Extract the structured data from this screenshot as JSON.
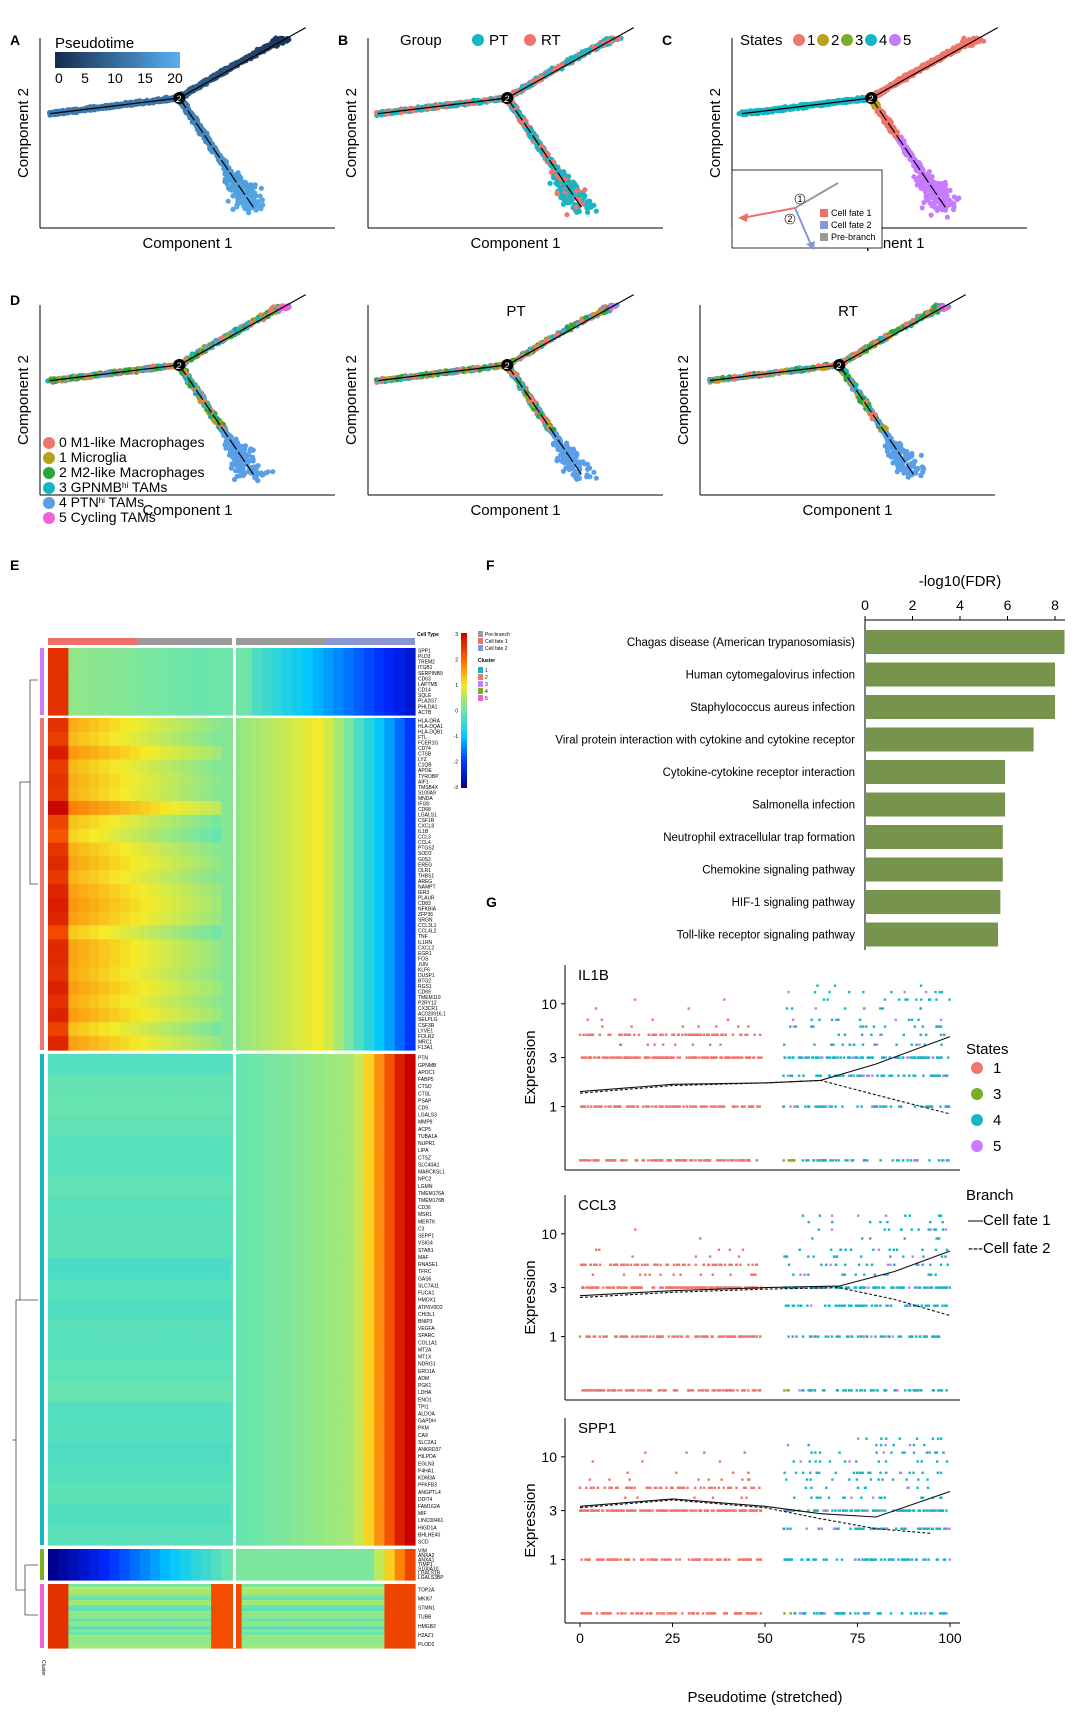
{
  "panel_labels": [
    "A",
    "B",
    "C",
    "D",
    "E",
    "F",
    "G"
  ],
  "colors": {
    "fate1": "#ec7168",
    "fate2": "#8a96d4",
    "prebranch": "#9a9a9a",
    "state1": "#ef766c",
    "state2": "#b8a21a",
    "state3": "#7cae25",
    "state4": "#16b5c3",
    "state5": "#c77cff",
    "pt": "#16b5c3",
    "rt": "#ef766c",
    "c0": "#ef766c",
    "c1": "#b8a21a",
    "c2": "#27a83c",
    "c3": "#16b5c3",
    "c4": "#5a9ee8",
    "c5": "#f260dc",
    "bar": "#76944c"
  },
  "trajectory": {
    "xlabel": "Component 1",
    "ylabel": "Component 2",
    "branch_label": "2",
    "A": {
      "legend_title": "Pseudotime",
      "colorbar_ticks": [
        "0",
        "5",
        "10",
        "15",
        "20"
      ]
    },
    "B": {
      "legend_title": "Group",
      "groups": [
        "PT",
        "RT"
      ]
    },
    "C": {
      "legend_title": "States",
      "states": [
        "1",
        "2",
        "3",
        "4",
        "5"
      ],
      "inset": {
        "labels": [
          "Cell fate 1",
          "Cell fate 2",
          "Pre-branch"
        ],
        "markers": [
          "1",
          "2"
        ]
      }
    },
    "D": {
      "titles": [
        "",
        "PT",
        "RT"
      ],
      "clusters": [
        "0 M1-like Macrophages",
        "1 Microglia",
        "2 M2-like Macrophages",
        "3 GPNMBhi TAMs",
        "4 PTNhi TAMs",
        "5 Cycling TAMs"
      ],
      "cluster_superscript_names": [
        {
          "base": "3 GPNMB",
          "sup": "hi",
          "rest": " TAMs"
        },
        {
          "base": "4 PTN",
          "sup": "hi",
          "rest": " TAMs"
        }
      ]
    }
  },
  "heatmap": {
    "cell_type_title": "Cell Type",
    "cell_types": [
      "Pre-branch",
      "Cell fate 1",
      "Cell fate 2"
    ],
    "cluster_title": "Cluster",
    "clusters": [
      "1",
      "2",
      "3",
      "4",
      "5"
    ],
    "colorbar_ticks": [
      "3",
      "2",
      "1",
      "0",
      "-1",
      "-2",
      "-3"
    ],
    "side_label": "Cluster",
    "genes_block1": [
      "SPP1",
      "PLD3",
      "TREM2",
      "ITGB1",
      "SERPINB9",
      "CD63",
      "LAPTM5",
      "CD14",
      "SQLE",
      "PLA2G7",
      "PHLDA1",
      "ACTB"
    ],
    "genes_block2": [
      "HLA-DRA",
      "HLA-DQA1",
      "HLA-DQB1",
      "FTL",
      "FCER1G",
      "CD74",
      "CTSB",
      "LYZ",
      "C1QB",
      "APOE",
      "TYROBP",
      "AIF1",
      "TMSB4X",
      "S100A9",
      "MNDA",
      "IFI30",
      "CD68",
      "LGALS1",
      "CSF1R",
      "CXCL8",
      "IL1B",
      "CCL3",
      "CCL4",
      "PTGS2",
      "SOD2",
      "G0S2",
      "EREG",
      "OLR1",
      "THBS1",
      "AREG",
      "NAMPT",
      "IER3",
      "PLAUR",
      "CD83",
      "NFKBIA",
      "ZFP36",
      "SRGN",
      "CCL3L1",
      "CCL4L2",
      "TNF",
      "IL1RN",
      "CXCL2",
      "EGR1",
      "FOS",
      "JUN",
      "KLF6",
      "DUSP1",
      "BTG2",
      "RGS1",
      "CD69",
      "TMEM119",
      "P2RY12",
      "CX3CR1",
      "AC020916.1",
      "SELPLG",
      "CSF3R",
      "LYVE1",
      "FOLR2",
      "MRC1",
      "F13A1"
    ],
    "genes_block3": [
      "PTN",
      "GPNMB",
      "APOC1",
      "FABP5",
      "CTSD",
      "CTSL",
      "PSAP",
      "CD9",
      "LGALS3",
      "MMP9",
      "ACP5",
      "TUBA1A",
      "NUPR1",
      "LIPA",
      "CTSZ",
      "SLC40A1",
      "MARCKSL1",
      "NPC2",
      "LGMN",
      "TMEM176A",
      "TMEM176B",
      "CD36",
      "MSR1",
      "MERTK",
      "C3",
      "SEPP1",
      "VSIG4",
      "STAB1",
      "MAF",
      "RNASE1",
      "TFRC",
      "GAS6",
      "SLC7A11",
      "FUCA1",
      "HMOX1",
      "ATP6V0D2",
      "CHI3L1",
      "BNIP3",
      "VEGFA",
      "SPARC",
      "COL1A1",
      "MT2A",
      "MT1X",
      "NDRG1",
      "ERO1A",
      "ADM",
      "PGK1",
      "LDHA",
      "ENO1",
      "TPI1",
      "ALDOA",
      "GAPDH",
      "PKM",
      "CA9",
      "SLC2A1",
      "ANKRD37",
      "HILPDA",
      "EGLN3",
      "P4HA1",
      "KDM3A",
      "PFKFB3",
      "ANGPTL4",
      "DDIT4",
      "FAM162A",
      "MIF",
      "LINC00461",
      "HIGD1A",
      "BHLHE40",
      "SCD"
    ],
    "genes_block4": [
      "VIM",
      "ANXA2",
      "ANXA1",
      "TIMP1",
      "S100A10",
      "LGALS1B",
      "LGALS3BP"
    ],
    "genes_block5": [
      "TOP2A",
      "MKI67",
      "STMN1",
      "TUBB",
      "HMGB2",
      "H2AZ1",
      "PLOD2"
    ]
  },
  "chart_data": [
    {
      "panel": "F",
      "type": "bar",
      "orientation": "horizontal",
      "title": "-log10(FDR)",
      "categories": [
        "Chagas disease (American trypanosomiasis)",
        "Human cytomegalovirus infection",
        "Staphylococcus aureus infection",
        "Viral protein interaction with cytokine and cytokine receptor",
        "Cytokine-cytokine receptor interaction",
        "Salmonella infection",
        "Neutrophil extracellular trap formation",
        "Chemokine signaling pathway",
        "HIF-1 signaling pathway",
        "Toll-like receptor signaling pathway"
      ],
      "values": [
        8.4,
        8.0,
        8.0,
        7.1,
        5.9,
        5.9,
        5.8,
        5.8,
        5.7,
        5.6
      ],
      "xticks": [
        0,
        2,
        4,
        6,
        8
      ],
      "xlim": [
        0,
        8.5
      ]
    },
    {
      "panel": "G",
      "type": "scatter",
      "xlabel": "Pseudotime (stretched)",
      "ylabel": "Expression",
      "xticks": [
        0,
        25,
        50,
        75,
        100
      ],
      "yticks": [
        1,
        3,
        10
      ],
      "ylog": true,
      "genes": [
        "IL1B",
        "CCL3",
        "SPP1"
      ],
      "states_legend_title": "States",
      "states": [
        "1",
        "3",
        "4",
        "5"
      ],
      "branch_legend_title": "Branch",
      "branches": [
        "—Cell fate 1",
        "---Cell fate 2"
      ],
      "curves": {
        "IL1B": {
          "fate1": [
            [
              0,
              1.4
            ],
            [
              25,
              1.65
            ],
            [
              50,
              1.7
            ],
            [
              65,
              1.8
            ],
            [
              80,
              2.6
            ],
            [
              100,
              4.8
            ]
          ],
          "fate2": [
            [
              0,
              1.35
            ],
            [
              25,
              1.6
            ],
            [
              50,
              1.7
            ],
            [
              65,
              1.8
            ],
            [
              80,
              1.3
            ],
            [
              100,
              0.85
            ]
          ]
        },
        "CCL3": {
          "fate1": [
            [
              0,
              2.5
            ],
            [
              25,
              2.8
            ],
            [
              50,
              3.0
            ],
            [
              70,
              3.1
            ],
            [
              85,
              4.3
            ],
            [
              100,
              6.8
            ]
          ],
          "fate2": [
            [
              0,
              2.4
            ],
            [
              25,
              2.7
            ],
            [
              50,
              2.9
            ],
            [
              70,
              3.0
            ],
            [
              85,
              2.3
            ],
            [
              100,
              1.6
            ]
          ]
        },
        "SPP1": {
          "fate1": [
            [
              0,
              3.3
            ],
            [
              25,
              3.9
            ],
            [
              50,
              3.3
            ],
            [
              65,
              2.8
            ],
            [
              80,
              2.6
            ],
            [
              100,
              4.6
            ]
          ],
          "fate2": [
            [
              0,
              3.2
            ],
            [
              25,
              3.8
            ],
            [
              50,
              3.2
            ],
            [
              65,
              2.5
            ],
            [
              80,
              2.0
            ],
            [
              95,
              1.8
            ]
          ]
        }
      }
    }
  ]
}
